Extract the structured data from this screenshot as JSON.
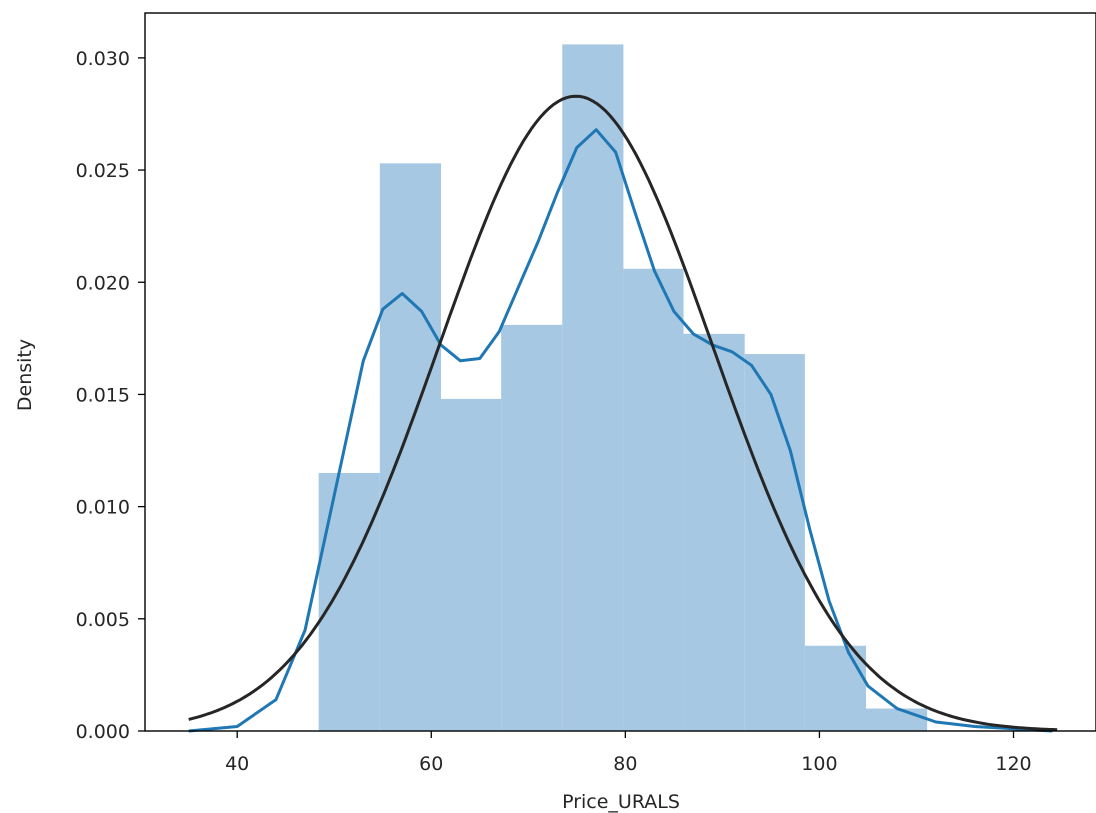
{
  "chart_data": {
    "type": "bar",
    "xlabel": "Price_URALS",
    "ylabel": "Density",
    "xlim": [
      30.5,
      128.5
    ],
    "ylim": [
      0,
      0.032
    ],
    "xticks": [
      40,
      60,
      80,
      100,
      120
    ],
    "yticks": [
      0.0,
      0.005,
      0.01,
      0.015,
      0.02,
      0.025,
      0.03
    ],
    "ytick_labels": [
      "0.000",
      "0.005",
      "0.010",
      "0.015",
      "0.020",
      "0.025",
      "0.030"
    ],
    "grid": false,
    "histogram": {
      "color": "#a6c8e2",
      "bins": [
        {
          "x0": 48.4,
          "x1": 54.7,
          "density": 0.0115
        },
        {
          "x0": 54.7,
          "x1": 61.0,
          "density": 0.0253
        },
        {
          "x0": 61.0,
          "x1": 67.2,
          "density": 0.0148
        },
        {
          "x0": 67.2,
          "x1": 73.5,
          "density": 0.0181
        },
        {
          "x0": 73.5,
          "x1": 79.8,
          "density": 0.0306
        },
        {
          "x0": 79.8,
          "x1": 86.0,
          "density": 0.0206
        },
        {
          "x0": 86.0,
          "x1": 92.3,
          "density": 0.0177
        },
        {
          "x0": 92.3,
          "x1": 98.5,
          "density": 0.0168
        },
        {
          "x0": 98.5,
          "x1": 104.8,
          "density": 0.0038
        },
        {
          "x0": 104.8,
          "x1": 111.1,
          "density": 0.001
        }
      ]
    },
    "series": [
      {
        "kind": "kde",
        "color": "#1f77b4",
        "x": [
          35,
          40,
          44,
          47,
          50,
          53,
          55,
          57,
          59,
          61,
          63,
          65,
          67,
          69,
          71,
          73,
          75,
          77,
          79,
          81,
          83,
          85,
          87,
          89,
          91,
          93,
          95,
          97,
          99,
          101,
          103,
          105,
          108,
          112,
          116,
          120,
          124
        ],
        "y": [
          0.0,
          0.0002,
          0.0014,
          0.0045,
          0.0105,
          0.0165,
          0.0188,
          0.0195,
          0.0187,
          0.0172,
          0.0165,
          0.0166,
          0.0178,
          0.0198,
          0.0218,
          0.024,
          0.026,
          0.0268,
          0.0258,
          0.0231,
          0.0205,
          0.0187,
          0.0177,
          0.0172,
          0.0169,
          0.0163,
          0.015,
          0.0125,
          0.009,
          0.0058,
          0.0035,
          0.002,
          0.001,
          0.0004,
          0.0002,
          0.0001,
          0.0
        ]
      },
      {
        "kind": "normal_fit",
        "color": "#262626",
        "mean": 74.9,
        "std": 14.1
      }
    ]
  }
}
